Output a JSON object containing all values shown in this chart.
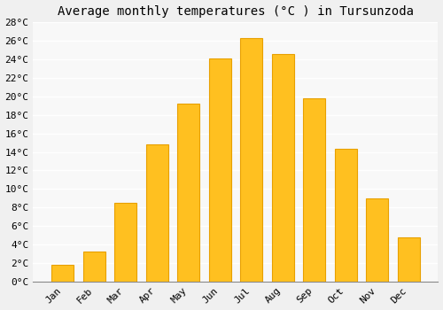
{
  "title": "Average monthly temperatures (°C ) in Tursunzoda",
  "months": [
    "Jan",
    "Feb",
    "Mar",
    "Apr",
    "May",
    "Jun",
    "Jul",
    "Aug",
    "Sep",
    "Oct",
    "Nov",
    "Dec"
  ],
  "temperatures": [
    1.8,
    3.3,
    8.5,
    14.8,
    19.2,
    24.1,
    26.3,
    24.6,
    19.8,
    14.3,
    9.0,
    4.8
  ],
  "bar_color": "#FFC020",
  "bar_edge_color": "#E8A000",
  "background_color": "#f0f0f0",
  "plot_bg_color": "#f8f8f8",
  "grid_color": "#ffffff",
  "ylim": [
    0,
    28
  ],
  "yticks": [
    0,
    2,
    4,
    6,
    8,
    10,
    12,
    14,
    16,
    18,
    20,
    22,
    24,
    26,
    28
  ],
  "title_fontsize": 10,
  "tick_fontsize": 8,
  "font_family": "monospace"
}
